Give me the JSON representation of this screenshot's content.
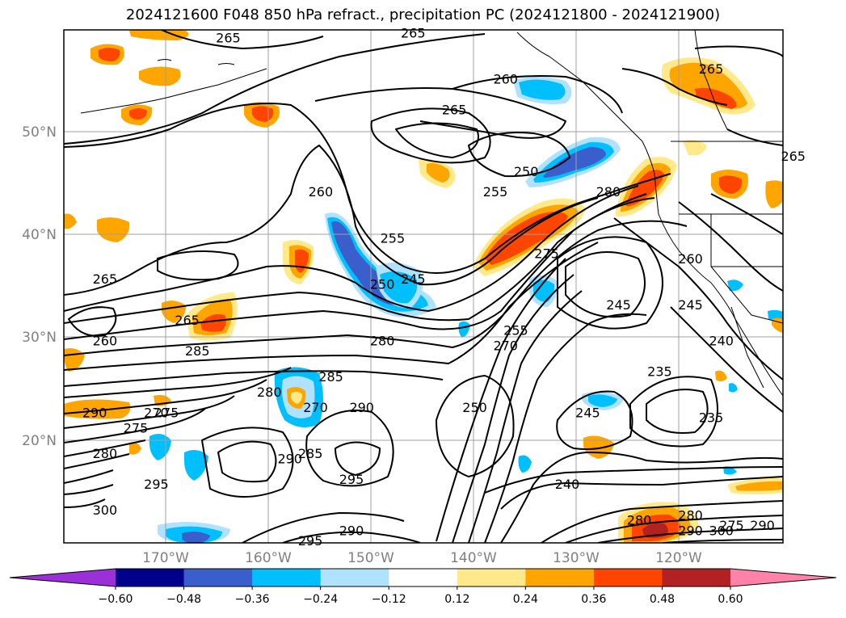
{
  "title": "2024121600 F048 850 hPa refract., precipitation PC (2024121800 - 2024121900)",
  "lat_labels": [
    "50°N",
    "40°N",
    "30°N",
    "20°N"
  ],
  "lon_labels": [
    "170°W",
    "160°W",
    "150°W",
    "140°W",
    "130°W",
    "120°W"
  ],
  "colorbar": {
    "ticks": [
      "−0.60",
      "−0.48",
      "−0.36",
      "−0.24",
      "−0.12",
      "0.12",
      "0.24",
      "0.36",
      "0.48",
      "0.60"
    ],
    "colors": [
      "#9b30d9",
      "#00008b",
      "#3a5fcd",
      "#00bfff",
      "#b0e2ff",
      "#ffffff",
      "#ffe98a",
      "#ffa500",
      "#ff4500",
      "#b22222",
      "#ff82ab"
    ]
  },
  "contour_labels": [
    {
      "text": "265",
      "lon": -164,
      "lat": 59
    },
    {
      "text": "265",
      "lon": -146,
      "lat": 59.5
    },
    {
      "text": "265",
      "lon": -117,
      "lat": 56
    },
    {
      "text": "265",
      "lon": -142,
      "lat": 52
    },
    {
      "text": "265",
      "lon": -109,
      "lat": 47.5
    },
    {
      "text": "265",
      "lon": -176,
      "lat": 35.5
    },
    {
      "text": "265",
      "lon": -168,
      "lat": 31.5
    },
    {
      "text": "260",
      "lon": -137,
      "lat": 55
    },
    {
      "text": "260",
      "lon": -155,
      "lat": 44
    },
    {
      "text": "260",
      "lon": -176,
      "lat": 29.5
    },
    {
      "text": "260",
      "lon": -119,
      "lat": 37.5
    },
    {
      "text": "255",
      "lon": -148,
      "lat": 39.5
    },
    {
      "text": "255",
      "lon": -138,
      "lat": 44
    },
    {
      "text": "255",
      "lon": -136,
      "lat": 30.5
    },
    {
      "text": "250",
      "lon": -135,
      "lat": 46
    },
    {
      "text": "250",
      "lon": -149,
      "lat": 35
    },
    {
      "text": "250",
      "lon": -140,
      "lat": 23
    },
    {
      "text": "245",
      "lon": -146,
      "lat": 35.5
    },
    {
      "text": "245",
      "lon": -126,
      "lat": 33
    },
    {
      "text": "245",
      "lon": -119,
      "lat": 33
    },
    {
      "text": "245",
      "lon": -129,
      "lat": 22.5
    },
    {
      "text": "240",
      "lon": -116,
      "lat": 29.5
    },
    {
      "text": "240",
      "lon": -131,
      "lat": 15.5
    },
    {
      "text": "235",
      "lon": -122,
      "lat": 26.5
    },
    {
      "text": "235",
      "lon": -117,
      "lat": 22
    },
    {
      "text": "280",
      "lon": -127,
      "lat": 44
    },
    {
      "text": "280",
      "lon": -149,
      "lat": 29.5
    },
    {
      "text": "280",
      "lon": -160,
      "lat": 24.5
    },
    {
      "text": "280",
      "lon": -176,
      "lat": 18.5
    },
    {
      "text": "280",
      "lon": -124,
      "lat": 12
    },
    {
      "text": "280",
      "lon": -119,
      "lat": 12.5
    },
    {
      "text": "275",
      "lon": -133,
      "lat": 38
    },
    {
      "text": "275",
      "lon": -173,
      "lat": 21
    },
    {
      "text": "275",
      "lon": -170,
      "lat": 22.5
    },
    {
      "text": "270",
      "lon": -137,
      "lat": 29
    },
    {
      "text": "270",
      "lon": -171,
      "lat": 22.5
    },
    {
      "text": "270",
      "lon": -155.5,
      "lat": 23
    },
    {
      "text": "285",
      "lon": -167,
      "lat": 28.5
    },
    {
      "text": "285",
      "lon": -154,
      "lat": 26
    },
    {
      "text": "285",
      "lon": -156,
      "lat": 18.5
    },
    {
      "text": "290",
      "lon": -177,
      "lat": 22.5
    },
    {
      "text": "290",
      "lon": -151,
      "lat": 23
    },
    {
      "text": "290",
      "lon": -158,
      "lat": 18
    },
    {
      "text": "290",
      "lon": -152,
      "lat": 11
    },
    {
      "text": "290",
      "lon": -119,
      "lat": 11
    },
    {
      "text": "290",
      "lon": -112,
      "lat": 11.5
    },
    {
      "text": "295",
      "lon": -171,
      "lat": 15.5
    },
    {
      "text": "295",
      "lon": -152,
      "lat": 16
    },
    {
      "text": "295",
      "lon": -156,
      "lat": 10
    },
    {
      "text": "300",
      "lon": -176,
      "lat": 13
    },
    {
      "text": "300",
      "lon": -116,
      "lat": 11
    },
    {
      "text": "275",
      "lon": -115,
      "lat": 11.5
    }
  ]
}
